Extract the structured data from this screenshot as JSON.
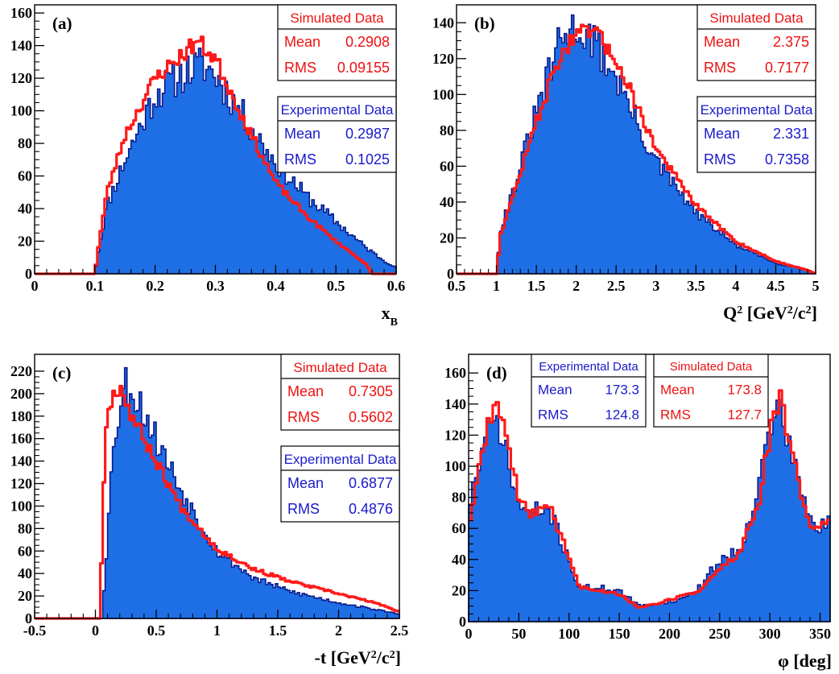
{
  "colors": {
    "experimental": "#1e6fe6",
    "experimental_edge": "#0a1a8c",
    "simulated": "#ff1a1a",
    "stats_blue_text": "#1a1acc",
    "stats_red_text": "#ee1111"
  },
  "chart_data": [
    {
      "type": "histogram",
      "label": "(a)",
      "xlabel_main": "x",
      "xlabel_sub": "B",
      "xlim": [
        0,
        0.6
      ],
      "ylim": [
        0,
        165
      ],
      "xticks": [
        0,
        0.1,
        0.2,
        0.3,
        0.4,
        0.5,
        0.6
      ],
      "yticks": [
        0,
        20,
        40,
        60,
        80,
        100,
        120,
        140,
        160
      ],
      "series": [
        {
          "name": "Experimental Data",
          "mean": "0.2987",
          "rms": "0.1025",
          "x": [
            0,
            0.1,
            0.105,
            0.12,
            0.15,
            0.2,
            0.25,
            0.28,
            0.3,
            0.35,
            0.4,
            0.45,
            0.5,
            0.55,
            0.58,
            0.6
          ],
          "y": [
            0,
            0,
            12,
            42,
            70,
            110,
            124,
            128,
            122,
            95,
            68,
            48,
            32,
            16,
            8,
            4
          ]
        },
        {
          "name": "Simulated Data",
          "mean": "0.2908",
          "rms": "0.09155",
          "x": [
            0,
            0.1,
            0.105,
            0.12,
            0.15,
            0.2,
            0.25,
            0.27,
            0.3,
            0.35,
            0.4,
            0.45,
            0.5,
            0.55,
            0.56,
            0.6
          ],
          "y": [
            0,
            0,
            14,
            50,
            85,
            120,
            136,
            143,
            132,
            92,
            56,
            36,
            20,
            6,
            0,
            0
          ]
        }
      ],
      "stats": [
        {
          "title": "Simulated Data",
          "color": "red",
          "rows": [
            {
              "label": "Mean",
              "value": "0.2908"
            },
            {
              "label": "RMS",
              "value": "0.09155"
            }
          ]
        },
        {
          "title": "Experimental Data",
          "color": "blue",
          "rows": [
            {
              "label": "Mean",
              "value": "0.2987"
            },
            {
              "label": "RMS",
              "value": "0.1025"
            }
          ]
        }
      ]
    },
    {
      "type": "histogram",
      "label": "(b)",
      "xlabel_main": "Q",
      "xlabel_sup": "2",
      "xlabel_rest": "[GeV",
      "xlabel_rest_sup": "2",
      "xlabel_rest2": "/c",
      "xlabel_rest2_sup": "2",
      "xlabel_end": "]",
      "xlim": [
        0.5,
        5
      ],
      "ylim": [
        0,
        150
      ],
      "xticks": [
        0.5,
        1,
        1.5,
        2,
        2.5,
        3,
        3.5,
        4,
        4.5,
        5
      ],
      "yticks": [
        0,
        20,
        40,
        60,
        80,
        100,
        120,
        140
      ],
      "series": [
        {
          "name": "Experimental Data",
          "mean": "2.331",
          "rms": "0.7358",
          "x": [
            0.5,
            1.0,
            1.05,
            1.2,
            1.5,
            1.8,
            2.0,
            2.2,
            2.5,
            2.8,
            3.0,
            3.5,
            4.0,
            4.5,
            4.9,
            5.0
          ],
          "y": [
            0,
            0,
            25,
            45,
            90,
            130,
            138,
            130,
            110,
            80,
            62,
            34,
            16,
            6,
            2,
            0
          ]
        },
        {
          "name": "Simulated Data",
          "mean": "2.375",
          "rms": "0.7177",
          "x": [
            0.5,
            1.0,
            1.05,
            1.2,
            1.5,
            1.8,
            2.0,
            2.2,
            2.5,
            2.8,
            3.0,
            3.5,
            4.0,
            4.5,
            4.9,
            5.0
          ],
          "y": [
            0,
            0,
            22,
            42,
            85,
            122,
            132,
            136,
            120,
            90,
            70,
            38,
            18,
            7,
            2,
            0
          ]
        }
      ],
      "stats": [
        {
          "title": "Simulated Data",
          "color": "red",
          "rows": [
            {
              "label": "Mean",
              "value": "2.375"
            },
            {
              "label": "RMS",
              "value": "0.7177"
            }
          ]
        },
        {
          "title": "Experimental Data",
          "color": "blue",
          "rows": [
            {
              "label": "Mean",
              "value": "2.331"
            },
            {
              "label": "RMS",
              "value": "0.7358"
            }
          ]
        }
      ]
    },
    {
      "type": "histogram",
      "label": "(c)",
      "xlabel_main": "-t",
      "xlabel_rest": "[GeV",
      "xlabel_rest_sup": "2",
      "xlabel_rest2": "/c",
      "xlabel_rest2_sup": "2",
      "xlabel_end": "]",
      "xlim": [
        -0.5,
        2.5
      ],
      "ylim": [
        0,
        235
      ],
      "xticks": [
        -0.5,
        0,
        0.5,
        1,
        1.5,
        2,
        2.5
      ],
      "yticks": [
        0,
        20,
        40,
        60,
        80,
        100,
        120,
        140,
        160,
        180,
        200,
        220
      ],
      "series": [
        {
          "name": "Experimental Data",
          "mean": "0.6877",
          "rms": "0.4876",
          "x": [
            -0.5,
            0.05,
            0.08,
            0.15,
            0.25,
            0.35,
            0.5,
            0.7,
            1.0,
            1.3,
            1.6,
            2.0,
            2.3,
            2.5
          ],
          "y": [
            0,
            0,
            40,
            160,
            210,
            195,
            160,
            115,
            60,
            36,
            24,
            14,
            8,
            4
          ]
        },
        {
          "name": "Simulated Data",
          "mean": "0.7305",
          "rms": "0.5602",
          "x": [
            -0.5,
            0.04,
            0.06,
            0.1,
            0.2,
            0.3,
            0.5,
            0.7,
            1.0,
            1.3,
            1.6,
            2.0,
            2.3,
            2.5
          ],
          "y": [
            0,
            0,
            100,
            190,
            208,
            180,
            140,
            100,
            62,
            44,
            33,
            22,
            14,
            6
          ]
        }
      ],
      "stats": [
        {
          "title": "Simulated Data",
          "color": "red",
          "rows": [
            {
              "label": "Mean",
              "value": "0.7305"
            },
            {
              "label": "RMS",
              "value": "0.5602"
            }
          ]
        },
        {
          "title": "Experimental Data",
          "color": "blue",
          "rows": [
            {
              "label": "Mean",
              "value": "0.6877"
            },
            {
              "label": "RMS",
              "value": "0.4876"
            }
          ]
        }
      ]
    },
    {
      "type": "histogram",
      "label": "(d)",
      "xlabel_main": "φ",
      "xlabel_rest": "[deg]",
      "xlim": [
        0,
        360
      ],
      "ylim": [
        0,
        172
      ],
      "xticks": [
        0,
        50,
        100,
        150,
        200,
        250,
        300,
        350
      ],
      "yticks": [
        0,
        20,
        40,
        60,
        80,
        100,
        120,
        140,
        160
      ],
      "series": [
        {
          "name": "Experimental Data",
          "mean": "173.3",
          "rms": "124.8",
          "x": [
            0,
            10,
            20,
            30,
            40,
            50,
            60,
            80,
            100,
            110,
            130,
            150,
            170,
            190,
            210,
            230,
            250,
            270,
            290,
            300,
            310,
            320,
            340,
            350,
            360
          ],
          "y": [
            75,
            100,
            122,
            130,
            100,
            75,
            70,
            72,
            40,
            22,
            22,
            20,
            10,
            12,
            14,
            22,
            40,
            46,
            90,
            125,
            140,
            110,
            65,
            60,
            65
          ]
        },
        {
          "name": "Simulated Data",
          "mean": "173.8",
          "rms": "127.7",
          "x": [
            0,
            10,
            20,
            30,
            40,
            50,
            60,
            80,
            100,
            110,
            130,
            150,
            170,
            190,
            210,
            230,
            250,
            270,
            290,
            300,
            310,
            320,
            340,
            350,
            360
          ],
          "y": [
            62,
            95,
            130,
            140,
            112,
            78,
            70,
            75,
            42,
            22,
            20,
            18,
            9,
            12,
            16,
            20,
            34,
            44,
            80,
            120,
            145,
            112,
            62,
            60,
            70
          ]
        }
      ],
      "stats": [
        {
          "title": "Experimental Data",
          "color": "blue",
          "rows": [
            {
              "label": "Mean",
              "value": "173.3"
            },
            {
              "label": "RMS",
              "value": "124.8"
            }
          ]
        },
        {
          "title": "Simulated Data",
          "color": "red",
          "rows": [
            {
              "label": "Mean",
              "value": "173.8"
            },
            {
              "label": "RMS",
              "value": "127.7"
            }
          ]
        }
      ]
    }
  ]
}
